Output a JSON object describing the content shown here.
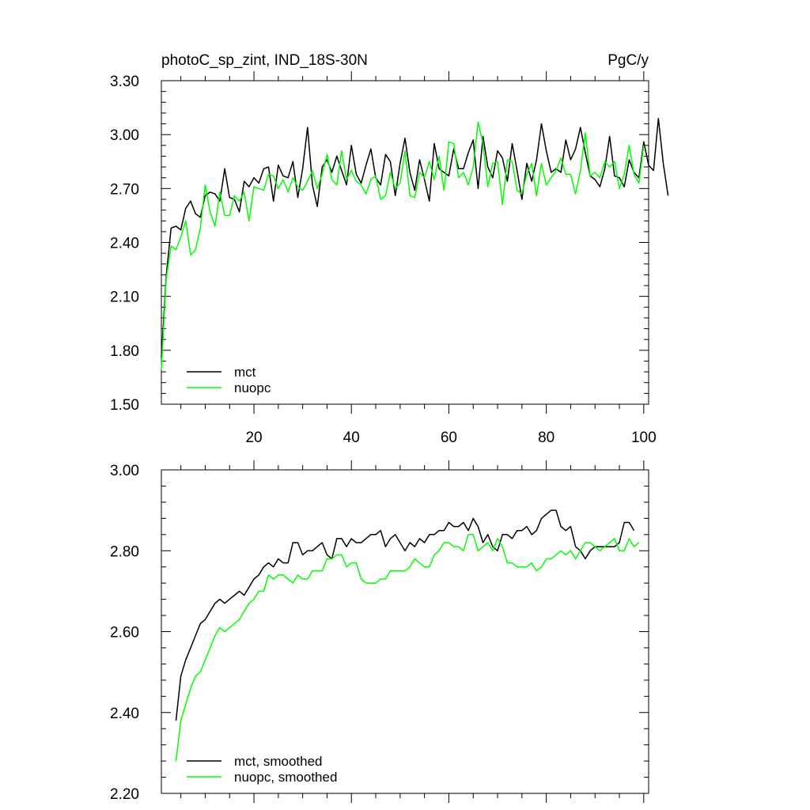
{
  "chart_data": [
    {
      "type": "line",
      "title": "photoC_sp_zint, IND_18S-30N",
      "units": "PgC/y",
      "xlabel": "",
      "ylabel": "",
      "xlim": [
        1,
        101
      ],
      "ylim": [
        1.5,
        3.3
      ],
      "yticks": [
        1.5,
        1.8,
        2.1,
        2.4,
        2.7,
        3.0,
        3.3
      ],
      "ytick_labels": [
        "1.50",
        "1.80",
        "2.10",
        "2.40",
        "2.70",
        "3.00",
        "3.30"
      ],
      "xticks": [
        20,
        40,
        60,
        80,
        100
      ],
      "xtick_labels": [
        "20",
        "40",
        "60",
        "80",
        "100"
      ],
      "legend_position": "bottom-left",
      "series": [
        {
          "name": "mct",
          "color": "#000000",
          "x_start": 1,
          "values": [
            1.76,
            2.22,
            2.48,
            2.49,
            2.47,
            2.59,
            2.63,
            2.56,
            2.54,
            2.66,
            2.68,
            2.67,
            2.63,
            2.81,
            2.65,
            2.64,
            2.57,
            2.74,
            2.71,
            2.76,
            2.73,
            2.81,
            2.82,
            2.63,
            2.83,
            2.77,
            2.76,
            2.85,
            2.65,
            2.81,
            3.04,
            2.72,
            2.6,
            2.82,
            2.86,
            2.79,
            2.88,
            2.8,
            2.72,
            2.94,
            2.78,
            2.73,
            2.83,
            2.92,
            2.76,
            2.72,
            2.89,
            2.85,
            2.66,
            2.84,
            2.98,
            2.79,
            2.69,
            2.86,
            2.75,
            2.63,
            2.95,
            2.81,
            2.79,
            2.77,
            2.92,
            2.81,
            2.81,
            2.9,
            2.97,
            2.7,
            2.99,
            2.82,
            2.76,
            2.91,
            2.87,
            2.74,
            2.95,
            2.8,
            2.64,
            2.84,
            2.74,
            2.86,
            3.06,
            2.91,
            2.79,
            2.81,
            2.79,
            2.97,
            2.86,
            2.92,
            3.04,
            2.9,
            2.77,
            2.75,
            2.71,
            2.81,
            2.99,
            2.77,
            2.76,
            2.71,
            2.86,
            2.79,
            2.76,
            2.96,
            2.83,
            2.8,
            3.09,
            2.84,
            2.66
          ]
        },
        {
          "name": "nuopc",
          "color": "#00ff00",
          "x_start": 1,
          "values": [
            1.69,
            2.2,
            2.38,
            2.36,
            2.43,
            2.52,
            2.33,
            2.36,
            2.48,
            2.72,
            2.57,
            2.49,
            2.68,
            2.55,
            2.55,
            2.66,
            2.63,
            2.68,
            2.52,
            2.71,
            2.7,
            2.69,
            2.78,
            2.77,
            2.7,
            2.75,
            2.68,
            2.76,
            2.71,
            2.69,
            2.74,
            2.8,
            2.7,
            2.78,
            2.89,
            2.75,
            2.72,
            2.91,
            2.75,
            2.8,
            2.74,
            2.72,
            2.67,
            2.75,
            2.77,
            2.64,
            2.66,
            2.79,
            2.7,
            2.73,
            2.91,
            2.66,
            2.65,
            2.79,
            2.76,
            2.85,
            2.75,
            2.88,
            2.69,
            2.96,
            2.95,
            2.76,
            2.79,
            2.72,
            2.82,
            3.07,
            2.95,
            2.71,
            2.84,
            2.85,
            2.61,
            2.86,
            2.85,
            2.69,
            2.67,
            2.78,
            2.84,
            2.66,
            2.84,
            2.72,
            2.76,
            2.8,
            2.87,
            2.78,
            2.78,
            2.67,
            2.8,
            3.01,
            2.77,
            2.79,
            2.76,
            2.85,
            2.82,
            2.85,
            2.7,
            2.78,
            2.94,
            2.78,
            2.73,
            2.94
          ]
        }
      ]
    },
    {
      "type": "line",
      "title": "",
      "xlabel": "",
      "ylabel": "",
      "xlim": [
        1,
        101
      ],
      "ylim": [
        2.2,
        3.0
      ],
      "yticks": [
        2.2,
        2.4,
        2.6,
        2.8,
        3.0
      ],
      "ytick_labels": [
        "2.20",
        "2.40",
        "2.60",
        "2.80",
        "3.00"
      ],
      "xticks": [
        20,
        40,
        60,
        80,
        100
      ],
      "xtick_labels": [],
      "legend_position": "bottom-left",
      "series": [
        {
          "name": "mct, smoothed",
          "color": "#000000",
          "x_start": 4,
          "values": [
            2.38,
            2.49,
            2.53,
            2.56,
            2.59,
            2.62,
            2.63,
            2.65,
            2.67,
            2.68,
            2.67,
            2.68,
            2.69,
            2.7,
            2.69,
            2.71,
            2.73,
            2.74,
            2.76,
            2.77,
            2.76,
            2.78,
            2.77,
            2.77,
            2.82,
            2.82,
            2.79,
            2.8,
            2.8,
            2.81,
            2.82,
            2.79,
            2.78,
            2.83,
            2.83,
            2.81,
            2.83,
            2.82,
            2.82,
            2.83,
            2.84,
            2.84,
            2.85,
            2.81,
            2.83,
            2.84,
            2.82,
            2.8,
            2.82,
            2.81,
            2.83,
            2.82,
            2.84,
            2.84,
            2.85,
            2.85,
            2.87,
            2.86,
            2.86,
            2.87,
            2.85,
            2.88,
            2.86,
            2.82,
            2.84,
            2.81,
            2.8,
            2.84,
            2.84,
            2.83,
            2.85,
            2.85,
            2.86,
            2.84,
            2.85,
            2.88,
            2.89,
            2.9,
            2.9,
            2.86,
            2.85,
            2.86,
            2.81,
            2.8,
            2.78,
            2.8,
            2.81,
            2.81,
            2.81,
            2.81,
            2.81,
            2.82,
            2.87,
            2.87,
            2.85
          ]
        },
        {
          "name": "nuopc, smoothed",
          "color": "#00ff00",
          "x_start": 4,
          "values": [
            2.28,
            2.38,
            2.42,
            2.46,
            2.49,
            2.5,
            2.53,
            2.56,
            2.59,
            2.61,
            2.6,
            2.61,
            2.62,
            2.63,
            2.65,
            2.67,
            2.68,
            2.7,
            2.7,
            2.74,
            2.73,
            2.74,
            2.74,
            2.73,
            2.72,
            2.74,
            2.73,
            2.73,
            2.75,
            2.75,
            2.75,
            2.78,
            2.78,
            2.79,
            2.79,
            2.76,
            2.77,
            2.77,
            2.73,
            2.72,
            2.72,
            2.72,
            2.73,
            2.73,
            2.75,
            2.75,
            2.75,
            2.75,
            2.76,
            2.78,
            2.77,
            2.76,
            2.76,
            2.79,
            2.8,
            2.82,
            2.82,
            2.81,
            2.81,
            2.8,
            2.84,
            2.84,
            2.8,
            2.81,
            2.82,
            2.8,
            2.83,
            2.81,
            2.77,
            2.77,
            2.76,
            2.76,
            2.76,
            2.77,
            2.75,
            2.76,
            2.78,
            2.78,
            2.79,
            2.8,
            2.79,
            2.8,
            2.78,
            2.8,
            2.82,
            2.82,
            2.81,
            2.8,
            2.81,
            2.82,
            2.83,
            2.8,
            2.8,
            2.83,
            2.81,
            2.82
          ]
        }
      ]
    }
  ]
}
